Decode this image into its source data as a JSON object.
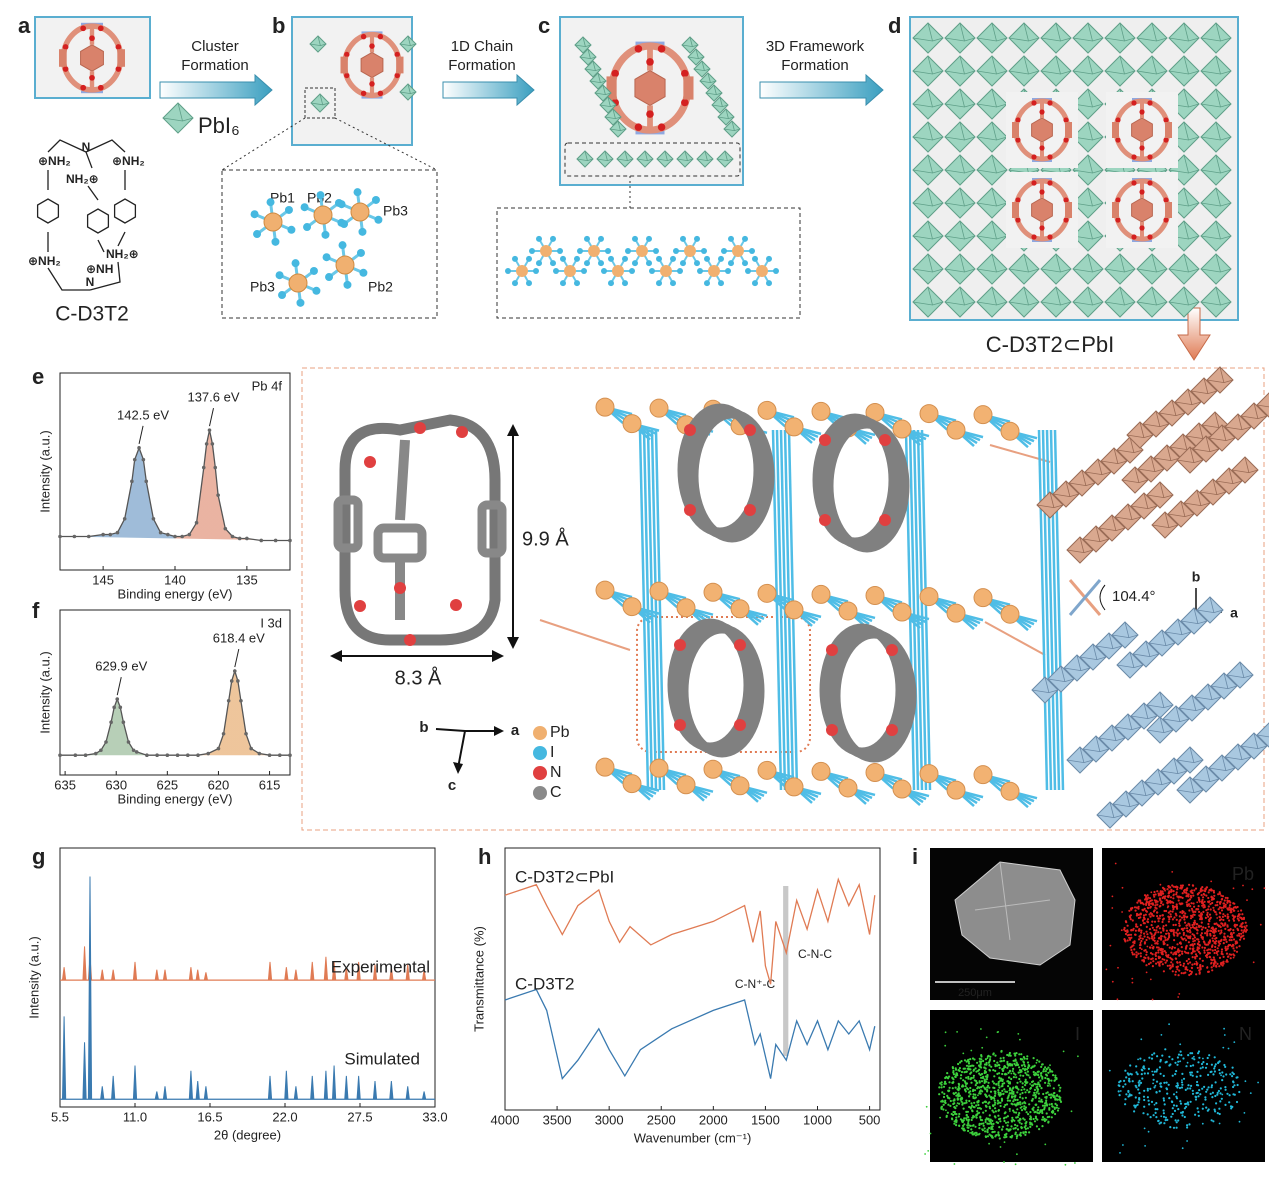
{
  "panel_letters": [
    "a",
    "b",
    "c",
    "d",
    "e",
    "f",
    "g",
    "h",
    "i"
  ],
  "top": {
    "steps": [
      [
        "Cluster",
        "Formation"
      ],
      [
        "1D Chain",
        "Formation"
      ],
      [
        "3D Framework",
        "Formation"
      ]
    ],
    "octahedron_label": "PbI₆",
    "molecule_name": "C-D3T2",
    "amine_labels": [
      "⊕NH₂",
      "NH₂⊕",
      "⊕NH₂",
      "⊕NH₂",
      "NH₂⊕",
      "⊕NH"
    ],
    "nitrogen_labels": [
      "N",
      "N"
    ],
    "pb_sites": [
      "Pb1",
      "Pb2",
      "Pb3",
      "Pb3",
      "Pb2"
    ],
    "framework_name": "C-D3T2⊂PbI"
  },
  "structure": {
    "height": "9.9 Å",
    "width": "8.3 Å",
    "axes": [
      "b",
      "a",
      "c"
    ],
    "legend": [
      "Pb",
      "I",
      "N",
      "C"
    ],
    "angle": "104.4°",
    "axes2": [
      "b",
      "a"
    ]
  },
  "chart_data": [
    {
      "type": "line",
      "label": "Pb 4f",
      "xlabel": "Binding energy (eV)",
      "ylabel": "Intensity (a.u.)",
      "xlim": [
        148,
        132
      ],
      "xticks": [
        145,
        140,
        135
      ],
      "ylim": [
        0,
        1
      ],
      "colors": [
        "#7fa6cc",
        "#e39a83"
      ],
      "x": [
        148,
        147,
        146,
        145,
        144.5,
        144,
        143.5,
        143,
        142.8,
        142.5,
        142.2,
        142,
        141.5,
        141,
        140.5,
        140,
        139.5,
        139,
        138.5,
        138,
        137.8,
        137.6,
        137.4,
        137.2,
        137,
        136.5,
        136,
        135.5,
        135,
        134,
        133,
        132
      ],
      "series": [
        {
          "color": "#555555",
          "values": [
            0.17,
            0.17,
            0.17,
            0.18,
            0.18,
            0.19,
            0.26,
            0.45,
            0.56,
            0.62,
            0.56,
            0.45,
            0.26,
            0.19,
            0.18,
            0.17,
            0.17,
            0.18,
            0.24,
            0.52,
            0.64,
            0.71,
            0.64,
            0.52,
            0.38,
            0.21,
            0.17,
            0.16,
            0.16,
            0.15,
            0.15,
            0.15
          ]
        }
      ],
      "annotations": [
        {
          "value": 142.5,
          "label": "142.5 eV"
        },
        {
          "value": 137.6,
          "label": "137.6 eV"
        }
      ]
    },
    {
      "type": "line",
      "label": "I 3d",
      "xlabel": "Binding energy (eV)",
      "ylabel": "Intensity (a.u.)",
      "xlim": [
        635.5,
        613
      ],
      "xticks": [
        635,
        630,
        625,
        620,
        615
      ],
      "ylim": [
        0,
        1
      ],
      "colors": [
        "#9fbf9f",
        "#e8b27a"
      ],
      "x": [
        635.5,
        634,
        633,
        632,
        631.5,
        631,
        630.5,
        630.2,
        629.9,
        629.6,
        629.3,
        628.8,
        628.3,
        628,
        627,
        626,
        625,
        624,
        623,
        622,
        621,
        620,
        619.5,
        619,
        618.7,
        618.4,
        618.1,
        617.8,
        617.3,
        616.8,
        616,
        615,
        614,
        613
      ],
      "series": [
        {
          "color": "#555555",
          "values": [
            0.12,
            0.12,
            0.12,
            0.13,
            0.15,
            0.2,
            0.32,
            0.41,
            0.46,
            0.41,
            0.32,
            0.2,
            0.15,
            0.14,
            0.12,
            0.12,
            0.12,
            0.12,
            0.12,
            0.12,
            0.13,
            0.16,
            0.25,
            0.45,
            0.57,
            0.63,
            0.57,
            0.45,
            0.25,
            0.16,
            0.13,
            0.12,
            0.12,
            0.12
          ]
        }
      ],
      "annotations": [
        {
          "value": 629.9,
          "label": "629.9 eV"
        },
        {
          "value": 618.4,
          "label": "618.4 eV"
        }
      ]
    },
    {
      "type": "stem",
      "xlabel": "2θ (degree)",
      "ylabel": "Intensity (a.u.)",
      "xlim": [
        5.5,
        33
      ],
      "xticks": [
        5.5,
        {
          "value": 11,
          "label": "11.0"
        },
        16.5,
        {
          "value": 22,
          "label": "22.0"
        },
        27.5,
        {
          "value": 33,
          "label": "33.0"
        }
      ],
      "ylim": [
        0,
        100
      ],
      "series": [
        {
          "name": "Experimental",
          "color": "#e07b54",
          "baseline": 49,
          "x": [
            5.8,
            7.3,
            7.7,
            8.6,
            9.4,
            11.0,
            12.6,
            13.2,
            15.1,
            15.6,
            16.2,
            20.9,
            22.1,
            22.8,
            24.0,
            25.0,
            25.6,
            26.5,
            27.4,
            28.6,
            29.8,
            31.0,
            32.2
          ],
          "values": [
            54,
            62,
            58,
            53,
            53,
            56,
            53,
            53,
            54,
            53,
            52,
            56,
            54,
            53,
            56,
            58,
            56,
            54,
            56,
            55,
            54,
            55,
            53
          ]
        },
        {
          "name": "Simulated",
          "color": "#3a7ab0",
          "baseline": 3,
          "x": [
            5.8,
            7.3,
            7.7,
            8.6,
            9.4,
            11.0,
            12.6,
            13.2,
            15.1,
            15.6,
            16.2,
            20.9,
            22.1,
            22.8,
            24.0,
            25.0,
            25.6,
            26.5,
            27.4,
            28.6,
            29.8,
            31.0,
            32.2
          ],
          "values": [
            35,
            25,
            89,
            8,
            12,
            16,
            6,
            8,
            14,
            10,
            8,
            12,
            14,
            8,
            12,
            14,
            16,
            12,
            12,
            10,
            10,
            8,
            6
          ]
        }
      ]
    },
    {
      "type": "line",
      "xlabel": "Wavenumber (cm⁻¹)",
      "ylabel": "Transmittance (%)",
      "xlim": [
        4000,
        400
      ],
      "xticks": [
        4000,
        3500,
        3000,
        2500,
        2000,
        1500,
        1000,
        500
      ],
      "ylim": [
        0,
        100
      ],
      "highlight": [
        1330,
        1280
      ],
      "notes": [
        "C-N⁺-C",
        "C-N-C"
      ],
      "series": [
        {
          "name": "C-D3T2⊂PbI",
          "color": "#e07b54",
          "x": [
            4000,
            3700,
            3600,
            3450,
            3300,
            3100,
            3000,
            2900,
            2800,
            2600,
            2400,
            2000,
            1700,
            1620,
            1550,
            1500,
            1450,
            1400,
            1300,
            1200,
            1100,
            1000,
            900,
            800,
            700,
            600,
            500,
            450
          ],
          "values": [
            82,
            86,
            78,
            67,
            78,
            84,
            72,
            64,
            70,
            63,
            67,
            72,
            78,
            64,
            76,
            55,
            48,
            72,
            60,
            80,
            69,
            84,
            72,
            88,
            78,
            86,
            67,
            82
          ]
        },
        {
          "name": "C-D3T2",
          "color": "#3a7ab0",
          "x": [
            4000,
            3700,
            3600,
            3450,
            3300,
            3100,
            3000,
            2850,
            2700,
            2400,
            2000,
            1700,
            1600,
            1550,
            1450,
            1400,
            1300,
            1200,
            1100,
            1000,
            900,
            800,
            700,
            600,
            500,
            450
          ],
          "values": [
            42,
            46,
            38,
            12,
            19,
            31,
            23,
            13,
            23,
            31,
            38,
            42,
            25,
            29,
            12,
            25,
            19,
            34,
            25,
            34,
            23,
            34,
            29,
            34,
            23,
            32
          ]
        }
      ]
    }
  ],
  "sem": {
    "scale": "250μm",
    "maps": [
      "Pb",
      "I",
      "N"
    ]
  }
}
